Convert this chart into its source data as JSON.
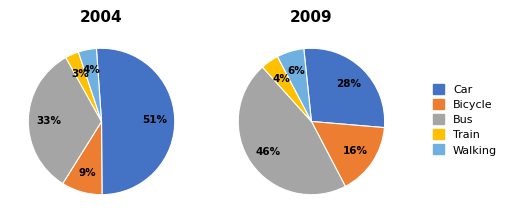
{
  "title_2004": "2004",
  "title_2009": "2009",
  "categories": [
    "Car",
    "Bicycle",
    "Bus",
    "Train",
    "Walking"
  ],
  "values_2004": [
    51,
    9,
    33,
    3,
    4
  ],
  "values_2009": [
    28,
    16,
    46,
    4,
    6
  ],
  "colors": [
    "#4472C4",
    "#ED7D31",
    "#A5A5A5",
    "#FFC000",
    "#70B0E0"
  ],
  "labels_2004": [
    "51%",
    "9%",
    "33%",
    "3%",
    "4%"
  ],
  "labels_2009": [
    "28%",
    "16%",
    "46%",
    "4%",
    "6%"
  ],
  "startangle_2004": 94,
  "startangle_2009": 96,
  "background_color": "#FFFFFF",
  "title_fontsize": 11,
  "label_fontsize": 7.5,
  "legend_fontsize": 8,
  "pctdistance": 0.72
}
